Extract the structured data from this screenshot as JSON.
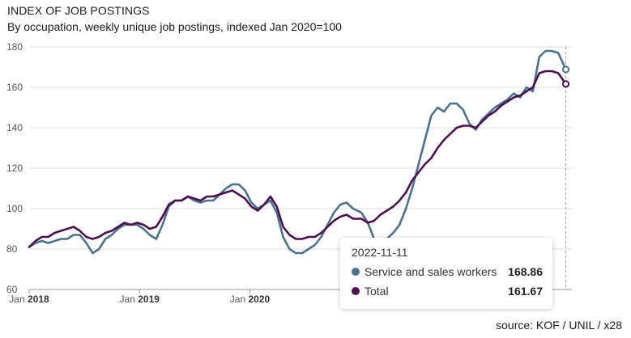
{
  "header": {
    "title": "INDEX OF JOB POSTINGS",
    "subtitle": "By occupation, weekly unique job postings, indexed Jan 2020=100"
  },
  "footer": {
    "source": "source: KOF / UNIL / x28"
  },
  "tooltip": {
    "date": "2022-11-11",
    "rows": [
      {
        "name": "Service and sales workers",
        "value": "168.86",
        "color": "#4a7190"
      },
      {
        "name": "Total",
        "value": "161.67",
        "color": "#4d0f4f"
      }
    ]
  },
  "chart_data": {
    "type": "line",
    "title": "INDEX OF JOB POSTINGS",
    "subtitle": "By occupation, weekly unique job postings, indexed Jan 2020=100",
    "x_axis": {
      "type": "time",
      "range": [
        "2018-01-01",
        "2022-12-01"
      ],
      "ticks": [
        {
          "date": "2018-01-01",
          "prefix": "Jan",
          "year": "2018"
        },
        {
          "date": "2019-01-01",
          "prefix": "Jan",
          "year": "2019"
        },
        {
          "date": "2020-01-01",
          "prefix": "Jan",
          "year": "2020"
        }
      ]
    },
    "y_axis": {
      "range": [
        60,
        180
      ],
      "ticks": [
        60,
        80,
        100,
        120,
        140,
        160,
        180
      ],
      "grid": true
    },
    "hover_date": "2022-11-11",
    "series": [
      {
        "name": "Service and sales workers",
        "color": "#4a7190",
        "points": [
          [
            "2018-01-01",
            81
          ],
          [
            "2018-01-22",
            83
          ],
          [
            "2018-02-12",
            84
          ],
          [
            "2018-03-05",
            83
          ],
          [
            "2018-03-26",
            84
          ],
          [
            "2018-04-16",
            85
          ],
          [
            "2018-05-07",
            85
          ],
          [
            "2018-05-28",
            87
          ],
          [
            "2018-06-18",
            87
          ],
          [
            "2018-07-09",
            83
          ],
          [
            "2018-07-30",
            78
          ],
          [
            "2018-08-20",
            80
          ],
          [
            "2018-09-10",
            85
          ],
          [
            "2018-10-01",
            87
          ],
          [
            "2018-10-22",
            90
          ],
          [
            "2018-11-12",
            92
          ],
          [
            "2018-12-03",
            92
          ],
          [
            "2018-12-24",
            92
          ],
          [
            "2019-01-14",
            90
          ],
          [
            "2019-02-04",
            87
          ],
          [
            "2019-02-25",
            85
          ],
          [
            "2019-03-18",
            92
          ],
          [
            "2019-04-08",
            101
          ],
          [
            "2019-04-29",
            104
          ],
          [
            "2019-05-20",
            104
          ],
          [
            "2019-06-10",
            106
          ],
          [
            "2019-07-01",
            104
          ],
          [
            "2019-07-22",
            103
          ],
          [
            "2019-08-12",
            104
          ],
          [
            "2019-09-02",
            104
          ],
          [
            "2019-09-23",
            107
          ],
          [
            "2019-10-14",
            110
          ],
          [
            "2019-11-04",
            112
          ],
          [
            "2019-11-25",
            112
          ],
          [
            "2019-12-16",
            109
          ],
          [
            "2020-01-06",
            103
          ],
          [
            "2020-01-27",
            100
          ],
          [
            "2020-02-17",
            102
          ],
          [
            "2020-03-09",
            104
          ],
          [
            "2020-03-30",
            98
          ],
          [
            "2020-04-20",
            86
          ],
          [
            "2020-05-11",
            80
          ],
          [
            "2020-06-01",
            78
          ],
          [
            "2020-06-22",
            78
          ],
          [
            "2020-07-13",
            80
          ],
          [
            "2020-08-03",
            82
          ],
          [
            "2020-08-24",
            86
          ],
          [
            "2020-09-14",
            92
          ],
          [
            "2020-10-05",
            98
          ],
          [
            "2020-10-26",
            102
          ],
          [
            "2020-11-16",
            103
          ],
          [
            "2020-12-07",
            100
          ],
          [
            "2021-01-04",
            98
          ],
          [
            "2021-01-25",
            93
          ],
          [
            "2021-02-15",
            85
          ],
          [
            "2021-03-08",
            82
          ],
          [
            "2021-03-29",
            85
          ],
          [
            "2021-04-19",
            88
          ],
          [
            "2021-05-10",
            92
          ],
          [
            "2021-05-31",
            100
          ],
          [
            "2021-06-21",
            110
          ],
          [
            "2021-07-12",
            122
          ],
          [
            "2021-08-02",
            134
          ],
          [
            "2021-08-23",
            146
          ],
          [
            "2021-09-13",
            150
          ],
          [
            "2021-10-04",
            148
          ],
          [
            "2021-10-25",
            152
          ],
          [
            "2021-11-15",
            152
          ],
          [
            "2021-12-06",
            149
          ],
          [
            "2021-12-27",
            142
          ],
          [
            "2022-01-17",
            139
          ],
          [
            "2022-02-07",
            144
          ],
          [
            "2022-02-28",
            147
          ],
          [
            "2022-03-21",
            150
          ],
          [
            "2022-04-11",
            152
          ],
          [
            "2022-05-02",
            154
          ],
          [
            "2022-05-23",
            157
          ],
          [
            "2022-06-13",
            155
          ],
          [
            "2022-07-04",
            160
          ],
          [
            "2022-07-25",
            158
          ],
          [
            "2022-08-15",
            175
          ],
          [
            "2022-09-05",
            178
          ],
          [
            "2022-09-26",
            178
          ],
          [
            "2022-10-17",
            177
          ],
          [
            "2022-11-11",
            168.86
          ]
        ]
      },
      {
        "name": "Total",
        "color": "#4d0f4f",
        "points": [
          [
            "2018-01-01",
            81
          ],
          [
            "2018-01-22",
            84
          ],
          [
            "2018-02-12",
            86
          ],
          [
            "2018-03-05",
            86
          ],
          [
            "2018-03-26",
            88
          ],
          [
            "2018-04-16",
            89
          ],
          [
            "2018-05-07",
            90
          ],
          [
            "2018-05-28",
            91
          ],
          [
            "2018-06-18",
            89
          ],
          [
            "2018-07-09",
            86
          ],
          [
            "2018-07-30",
            85
          ],
          [
            "2018-08-20",
            86
          ],
          [
            "2018-09-10",
            88
          ],
          [
            "2018-10-01",
            89
          ],
          [
            "2018-10-22",
            91
          ],
          [
            "2018-11-12",
            93
          ],
          [
            "2018-12-03",
            92
          ],
          [
            "2018-12-24",
            93
          ],
          [
            "2019-01-14",
            92
          ],
          [
            "2019-02-04",
            90
          ],
          [
            "2019-02-25",
            91
          ],
          [
            "2019-03-18",
            96
          ],
          [
            "2019-04-08",
            102
          ],
          [
            "2019-04-29",
            104
          ],
          [
            "2019-05-20",
            104
          ],
          [
            "2019-06-10",
            106
          ],
          [
            "2019-07-01",
            105
          ],
          [
            "2019-07-22",
            104
          ],
          [
            "2019-08-12",
            106
          ],
          [
            "2019-09-02",
            106
          ],
          [
            "2019-09-23",
            107
          ],
          [
            "2019-10-14",
            108
          ],
          [
            "2019-11-04",
            109
          ],
          [
            "2019-11-25",
            107
          ],
          [
            "2019-12-16",
            105
          ],
          [
            "2020-01-06",
            101
          ],
          [
            "2020-01-27",
            99
          ],
          [
            "2020-02-17",
            102
          ],
          [
            "2020-03-09",
            106
          ],
          [
            "2020-03-30",
            101
          ],
          [
            "2020-04-20",
            91
          ],
          [
            "2020-05-11",
            87
          ],
          [
            "2020-06-01",
            85
          ],
          [
            "2020-06-22",
            85
          ],
          [
            "2020-07-13",
            86
          ],
          [
            "2020-08-03",
            86
          ],
          [
            "2020-08-24",
            88
          ],
          [
            "2020-09-14",
            91
          ],
          [
            "2020-10-05",
            94
          ],
          [
            "2020-10-26",
            96
          ],
          [
            "2020-11-16",
            97
          ],
          [
            "2020-12-07",
            95
          ],
          [
            "2021-01-04",
            95
          ],
          [
            "2021-01-25",
            93
          ],
          [
            "2021-02-15",
            94
          ],
          [
            "2021-03-08",
            97
          ],
          [
            "2021-03-29",
            99
          ],
          [
            "2021-04-19",
            101
          ],
          [
            "2021-05-10",
            104
          ],
          [
            "2021-05-31",
            108
          ],
          [
            "2021-06-21",
            114
          ],
          [
            "2021-07-12",
            118
          ],
          [
            "2021-08-02",
            122
          ],
          [
            "2021-08-23",
            125
          ],
          [
            "2021-09-13",
            130
          ],
          [
            "2021-10-04",
            134
          ],
          [
            "2021-10-25",
            137
          ],
          [
            "2021-11-15",
            140
          ],
          [
            "2021-12-06",
            141
          ],
          [
            "2021-12-27",
            141
          ],
          [
            "2022-01-17",
            140
          ],
          [
            "2022-02-07",
            143
          ],
          [
            "2022-02-28",
            146
          ],
          [
            "2022-03-21",
            148
          ],
          [
            "2022-04-11",
            151
          ],
          [
            "2022-05-02",
            153
          ],
          [
            "2022-05-23",
            155
          ],
          [
            "2022-06-13",
            156
          ],
          [
            "2022-07-04",
            158
          ],
          [
            "2022-07-25",
            160
          ],
          [
            "2022-08-15",
            167
          ],
          [
            "2022-09-05",
            168
          ],
          [
            "2022-09-26",
            168
          ],
          [
            "2022-10-17",
            167
          ],
          [
            "2022-11-11",
            161.67
          ]
        ]
      }
    ]
  }
}
